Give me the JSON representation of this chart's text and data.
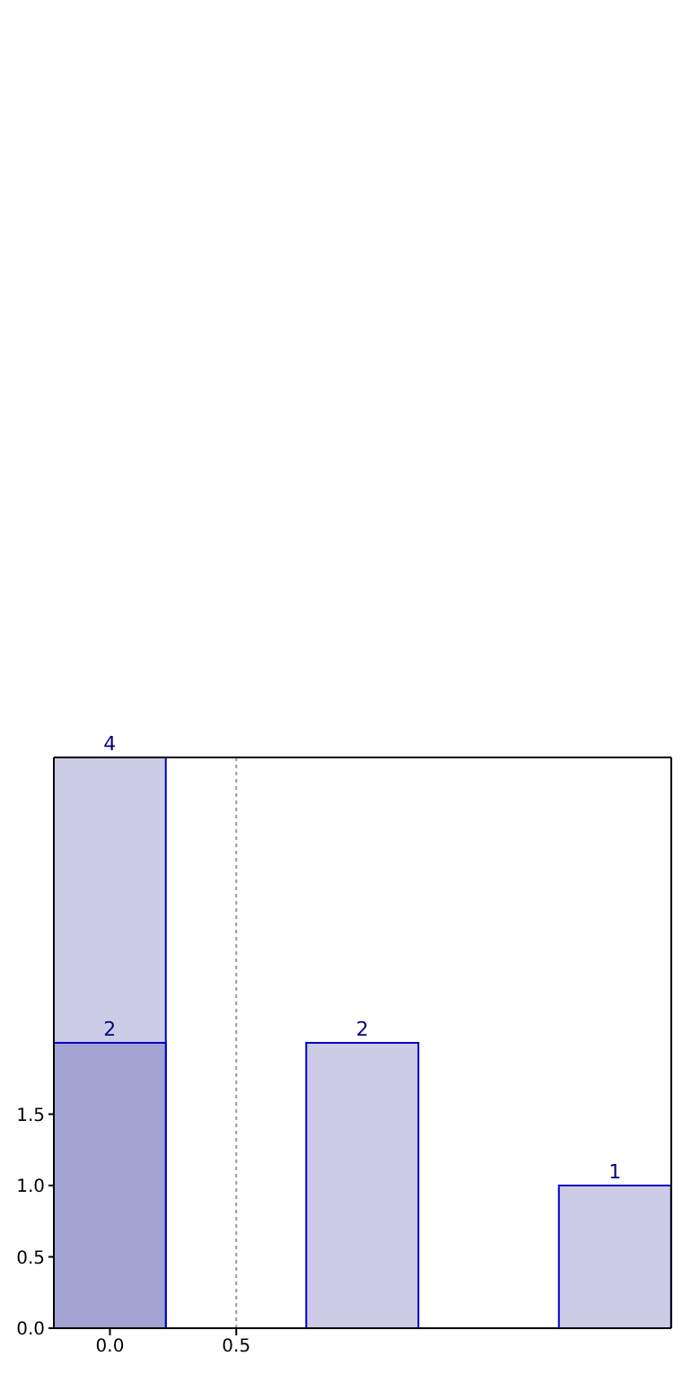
{
  "chart_data": {
    "type": "bar",
    "x": [
      0,
      1,
      2
    ],
    "series": [
      {
        "color": "#cccce6",
        "values": [
          4,
          2,
          1
        ]
      },
      {
        "color": "#a3a3d1",
        "x": [
          0
        ],
        "values": [
          2
        ]
      }
    ],
    "xlim": [
      -0.222,
      2.222
    ],
    "xticks": [
      {
        "value": 0,
        "label": "0.0"
      },
      0.5
    ],
    "ylim": [
      0,
      4
    ],
    "yticks": [
      {
        "value": 0,
        "label": "0.0"
      },
      0.5,
      {
        "value": 1,
        "label": "1.0"
      },
      1.5
    ],
    "grid": "x",
    "data_labels": true
  }
}
